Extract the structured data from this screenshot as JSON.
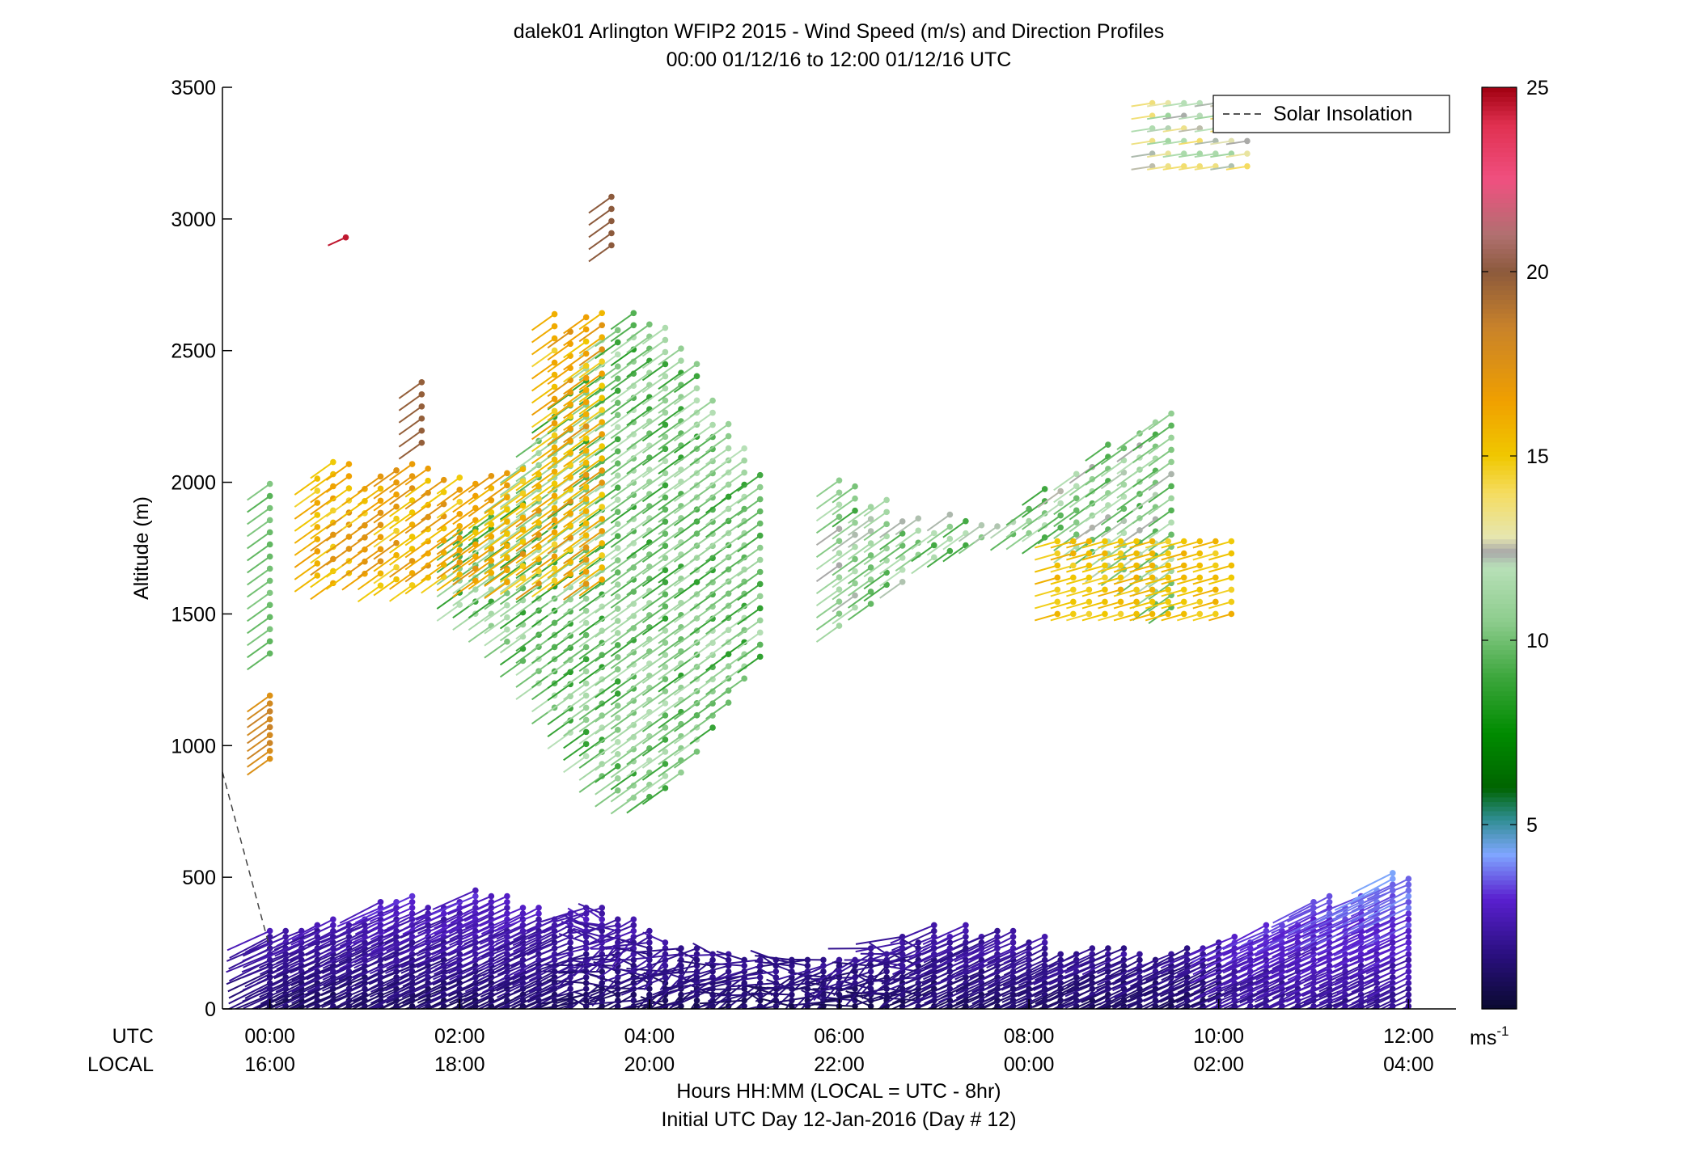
{
  "chart_data": {
    "type": "wind-barb profile",
    "title": "dalek01 Arlington WFIP2 2015 - Wind Speed (m/s) and Direction Profiles",
    "subtitle": "00:00 01/12/16 to 12:00 01/12/16  UTC",
    "ylabel": "Altitude (m)",
    "ylim": [
      0,
      3500
    ],
    "yticks": [
      "0",
      "500",
      "1000",
      "1500",
      "2000",
      "2500",
      "3000",
      "3500"
    ],
    "x_row_labels": {
      "utc": "UTC",
      "local": "LOCAL"
    },
    "xticks_utc": [
      "00:00",
      "02:00",
      "04:00",
      "06:00",
      "08:00",
      "10:00",
      "12:00"
    ],
    "xticks_local": [
      "16:00",
      "18:00",
      "20:00",
      "22:00",
      "00:00",
      "02:00",
      "04:00"
    ],
    "xlim_hours": [
      -0.5,
      12.5
    ],
    "xlabel": "Hours HH:MM  (LOCAL = UTC - 8hr)",
    "xlabel2": "Initial UTC Day 12-Jan-2016 (Day # 12)",
    "legend": {
      "label": "Solar Insolation",
      "placement": "top-right"
    },
    "solar_insolation": {
      "x": [
        -0.5,
        0
      ],
      "y": [
        900,
        230
      ]
    },
    "colorbar": {
      "range": [
        0,
        25
      ],
      "ticks": [
        "5",
        "10",
        "15",
        "20",
        "25"
      ],
      "unit_label": "ms",
      "unit_exponent": "-1",
      "stops": [
        {
          "v": 0,
          "c": "#0a0a30"
        },
        {
          "v": 1.5,
          "c": "#2a0f80"
        },
        {
          "v": 3.0,
          "c": "#5a20d0"
        },
        {
          "v": 4.2,
          "c": "#7fa6ff"
        },
        {
          "v": 5.2,
          "c": "#2c8c8c"
        },
        {
          "v": 6.0,
          "c": "#006400"
        },
        {
          "v": 7.5,
          "c": "#008c00"
        },
        {
          "v": 9.0,
          "c": "#3ca63c"
        },
        {
          "v": 10.5,
          "c": "#8ccc8c"
        },
        {
          "v": 12.0,
          "c": "#b8e0b8"
        },
        {
          "v": 12.4,
          "c": "#a8a8a8"
        },
        {
          "v": 12.8,
          "c": "#e6e6b0"
        },
        {
          "v": 14.0,
          "c": "#f5dc60"
        },
        {
          "v": 15.0,
          "c": "#f0c800"
        },
        {
          "v": 16.5,
          "c": "#f0a000"
        },
        {
          "v": 18.5,
          "c": "#c8822a"
        },
        {
          "v": 20.0,
          "c": "#8c5a3c"
        },
        {
          "v": 21.0,
          "c": "#b07070"
        },
        {
          "v": 22.5,
          "c": "#f05080"
        },
        {
          "v": 24.0,
          "c": "#e03050"
        },
        {
          "v": 25.0,
          "c": "#a00010"
        }
      ]
    },
    "series": [
      {
        "region": "boundary-layer",
        "t": [
          0,
          12
        ],
        "alt": [
          0,
          500
        ],
        "speed": [
          1,
          4
        ]
      },
      {
        "region": "upper-green",
        "t": [
          2.0,
          5.2
        ],
        "alt": [
          850,
          2600
        ],
        "speed": [
          9,
          12
        ]
      },
      {
        "region": "upper-orange",
        "t": [
          0.3,
          3.5
        ],
        "alt": [
          1600,
          2650
        ],
        "speed": [
          14,
          18
        ]
      }
    ]
  }
}
